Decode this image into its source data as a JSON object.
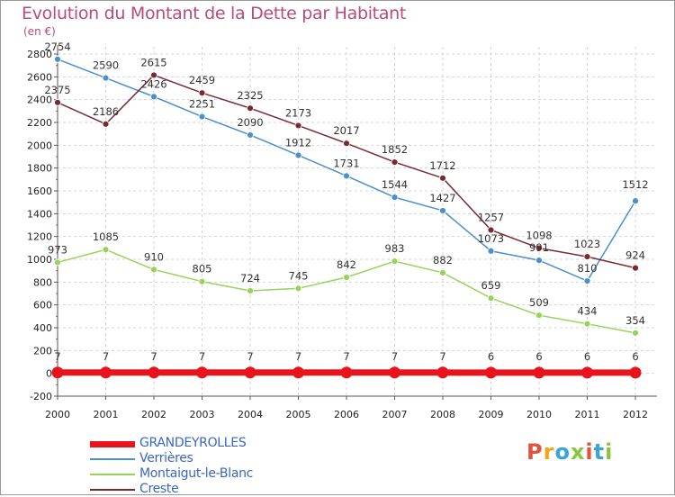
{
  "chart_data": {
    "type": "line",
    "title": "Evolution du Montant de la Dette par Habitant",
    "subtitle": "(en €)",
    "x": [
      "2000",
      "2001",
      "2002",
      "2003",
      "2004",
      "2005",
      "2006",
      "2007",
      "2008",
      "2009",
      "2010",
      "2011",
      "2012"
    ],
    "ylim": [
      -200,
      2800
    ],
    "yticks": [
      -200,
      0,
      200,
      400,
      600,
      800,
      1000,
      1200,
      1400,
      1600,
      1800,
      2000,
      2200,
      2400,
      2600,
      2800
    ],
    "grid": true,
    "legend_position": "bottom-left",
    "series": [
      {
        "name": "GRANDEYROLLES",
        "color": "#e8141b",
        "values": [
          7,
          7,
          7,
          7,
          7,
          7,
          7,
          7,
          7,
          6,
          6,
          6,
          6
        ]
      },
      {
        "name": "Verrières",
        "color": "#4a90cc",
        "values": [
          2754,
          2590,
          2426,
          2251,
          2090,
          1912,
          1731,
          1544,
          1427,
          1073,
          991,
          810,
          1512
        ]
      },
      {
        "name": "Montaigut-le-Blanc",
        "color": "#96d459",
        "values": [
          973,
          1085,
          910,
          805,
          724,
          745,
          842,
          983,
          882,
          659,
          509,
          434,
          354
        ]
      },
      {
        "name": "Creste",
        "color": "#7a2a2f",
        "values": [
          2375,
          2186,
          2615,
          2459,
          2325,
          2173,
          2017,
          1852,
          1712,
          1257,
          1098,
          1023,
          924
        ]
      }
    ]
  },
  "logo": {
    "text": "Proxiti"
  }
}
